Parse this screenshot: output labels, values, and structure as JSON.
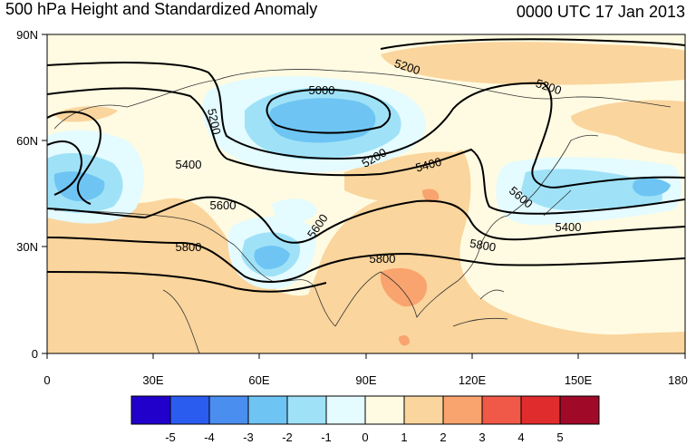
{
  "header": {
    "title": "500 hPa Height and Standardized Anomaly",
    "datetime": "0000 UTC 17 Jan 2013"
  },
  "axes": {
    "lat_ticks": [
      "90N",
      "60N",
      "30N",
      "0"
    ],
    "lon_ticks": [
      "0",
      "30E",
      "60E",
      "90E",
      "120E",
      "150E",
      "180"
    ]
  },
  "contour_labels": [
    {
      "text": "5000"
    },
    {
      "text": "5200"
    },
    {
      "text": "5200"
    },
    {
      "text": "5200"
    },
    {
      "text": "5200"
    },
    {
      "text": "5400"
    },
    {
      "text": "5400"
    },
    {
      "text": "5400"
    },
    {
      "text": "5600"
    },
    {
      "text": "5600"
    },
    {
      "text": "5600"
    },
    {
      "text": "5800"
    },
    {
      "text": "5800"
    },
    {
      "text": "5800"
    }
  ],
  "colorbar": {
    "colors": [
      "#2200cc",
      "#2b5cf0",
      "#4a8ef0",
      "#6ec5f3",
      "#9fe2f8",
      "#e4fbff",
      "#fffbe2",
      "#fad59d",
      "#f9a36e",
      "#f05848",
      "#e02c2c",
      "#a00a28"
    ],
    "labels": [
      "-5",
      "-4",
      "-3",
      "-2",
      "-1",
      "0",
      "1",
      "2",
      "3",
      "4",
      "5"
    ]
  },
  "map_colors": {
    "background": "#fffbe2",
    "pos1": "#fad59d",
    "pos2": "#f9a36e",
    "neg1": "#e4fbff",
    "neg2": "#9fe2f8",
    "neg3": "#6ec5f3"
  }
}
